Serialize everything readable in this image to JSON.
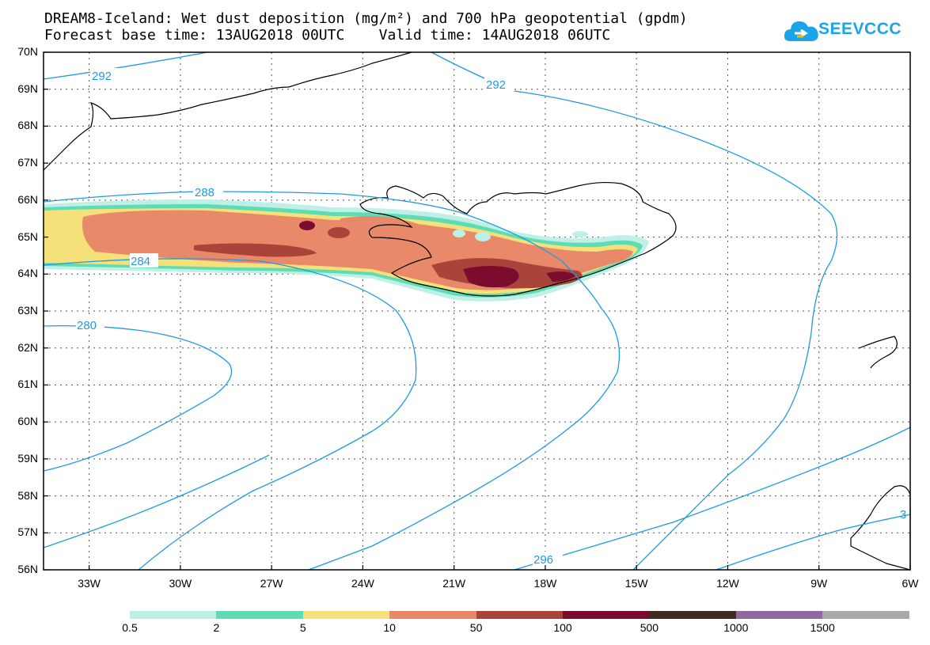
{
  "title": {
    "line1": "DREAM8-Iceland: Wet dust deposition (mg/m²) and 700 hPa geopotential (gpdm)",
    "line2": "Forecast base time: 13AUG2018 00UTC    Valid time: 14AUG2018 06UTC"
  },
  "logo": {
    "text": "SEEVCCC",
    "color": "#1aa5e8"
  },
  "axes": {
    "lat_labels": [
      "70N",
      "69N",
      "68N",
      "67N",
      "66N",
      "65N",
      "64N",
      "63N",
      "62N",
      "61N",
      "60N",
      "59N",
      "58N",
      "57N",
      "56N"
    ],
    "lon_labels": [
      "33W",
      "30W",
      "27W",
      "24W",
      "21W",
      "18W",
      "15W",
      "12W",
      "9W",
      "6W"
    ],
    "lat_range": [
      56,
      70
    ],
    "lon_range": [
      -34.5,
      -6
    ]
  },
  "contours": {
    "color": "#1e9be0",
    "labels": [
      "292",
      "292",
      "288",
      "284",
      "280",
      "296",
      "3"
    ]
  },
  "colorbar": {
    "labels": [
      "0.5",
      "2",
      "5",
      "10",
      "50",
      "100",
      "500",
      "1000",
      "1500"
    ],
    "colors": [
      "#bff0e8",
      "#5fdcb4",
      "#f5e07a",
      "#e8896a",
      "#a8443a",
      "#7b0c2e",
      "#3d2b1f",
      "#8e6aa0",
      "#a9a9a9"
    ]
  },
  "deposition_colors": {
    "l1": "#bff0e8",
    "l2": "#5fdcb4",
    "l3": "#f5e07a",
    "l4": "#e8896a",
    "l5": "#a8443a",
    "l6": "#7b0c2e"
  }
}
